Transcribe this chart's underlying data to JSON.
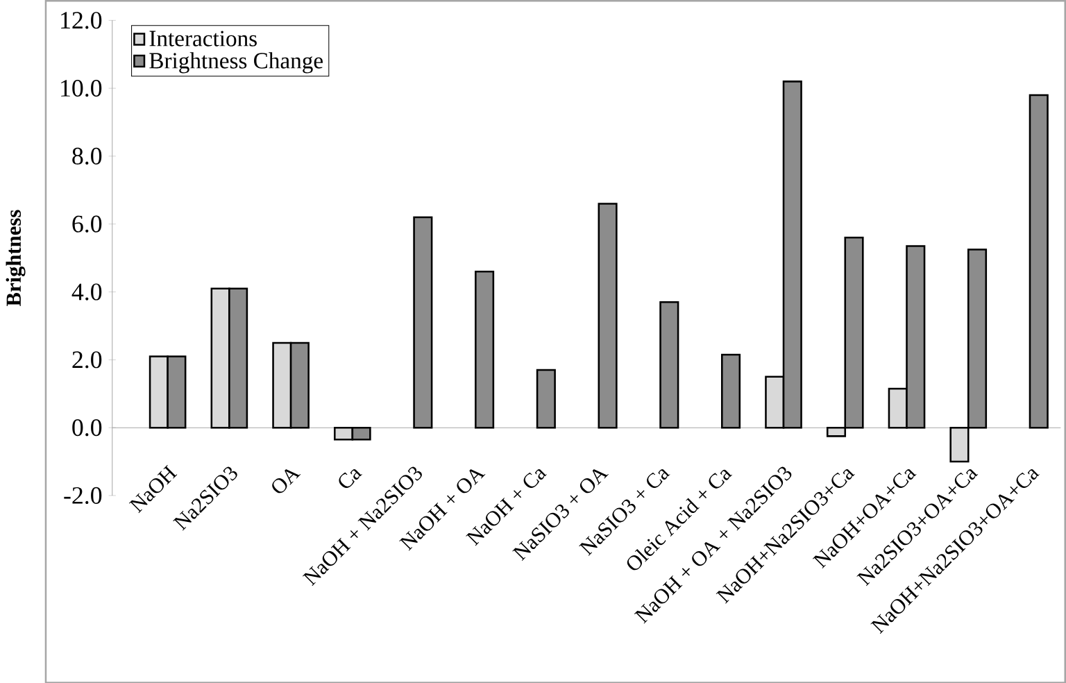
{
  "chart_data": {
    "type": "bar",
    "ylabel": "Brightness",
    "categories": [
      "NaOH",
      "Na2SIO3",
      "OA",
      "Ca",
      "NaOH + Na2SIO3",
      "NaOH + OA",
      "NaOH + Ca",
      "NaSIO3 + OA",
      "NaSIO3 + Ca",
      "Oleic Acid + Ca",
      "NaOH + OA + Na2SIO3",
      "NaOH+Na2SIO3+Ca",
      "NaOH+OA+Ca",
      "Na2SIO3+OA+Ca",
      "NaOH+Na2SIO3+OA+Ca"
    ],
    "series": [
      {
        "name": "Interactions",
        "color": "#d9d9d9",
        "values": [
          2.1,
          4.1,
          2.5,
          -0.35,
          null,
          null,
          null,
          null,
          null,
          null,
          1.5,
          -0.25,
          1.15,
          -1.0,
          null
        ]
      },
      {
        "name": "Brightness Change",
        "color": "#8c8c8c",
        "values": [
          2.1,
          4.1,
          2.5,
          -0.35,
          6.2,
          4.6,
          1.7,
          6.6,
          3.7,
          2.15,
          10.2,
          5.6,
          5.35,
          5.25,
          9.8
        ]
      }
    ],
    "ylim": [
      -2,
      12
    ],
    "yticks": [
      {
        "value": -2,
        "label": "-2.0"
      },
      {
        "value": 0,
        "label": "0.0"
      },
      {
        "value": 2,
        "label": "2.0"
      },
      {
        "value": 4,
        "label": "4.0"
      },
      {
        "value": 6,
        "label": "6.0"
      },
      {
        "value": 8,
        "label": "8.0"
      },
      {
        "value": 10,
        "label": "10.0"
      },
      {
        "value": 12,
        "label": "12.0"
      }
    ],
    "legend": "top left",
    "grid": false
  }
}
